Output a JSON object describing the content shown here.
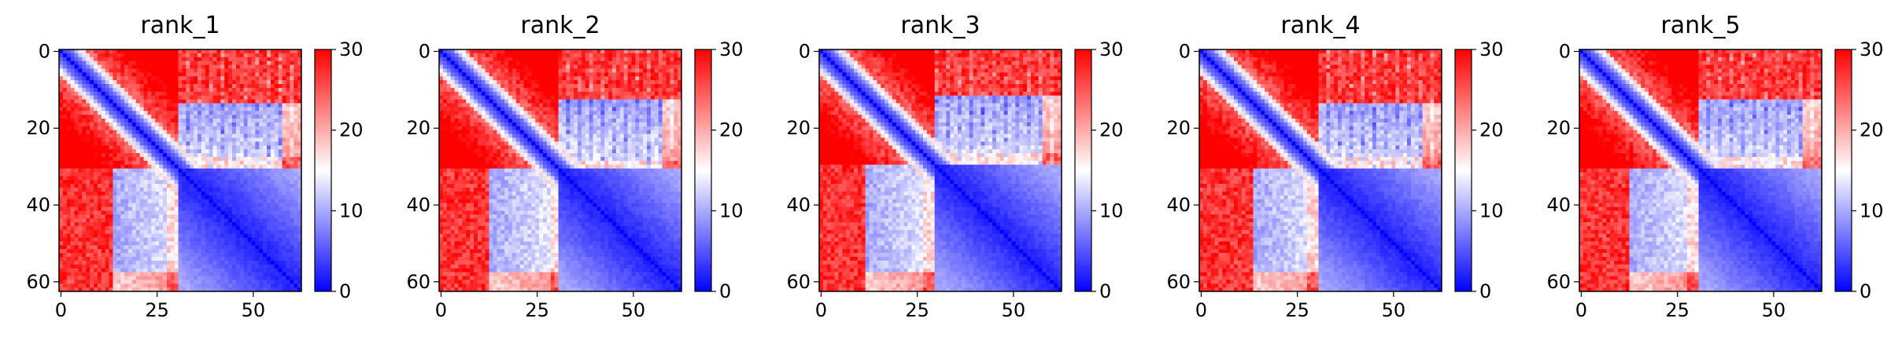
{
  "chart_data": [
    {
      "type": "heatmap",
      "title": "rank_1",
      "matrix_size": 63,
      "x_ticks": [
        0,
        25,
        50
      ],
      "y_ticks": [
        0,
        20,
        40,
        60
      ],
      "colorbar": {
        "min": 0,
        "max": 30,
        "ticks": [
          0,
          10,
          20,
          30
        ]
      },
      "colormap": {
        "low": "#0000ff",
        "mid": "#ffffff",
        "high": "#ff0000"
      },
      "pattern": {
        "domain_start": 31,
        "gap_row": 14,
        "lower_split": 28
      }
    },
    {
      "type": "heatmap",
      "title": "rank_2",
      "matrix_size": 63,
      "x_ticks": [
        0,
        25,
        50
      ],
      "y_ticks": [
        0,
        20,
        40,
        60
      ],
      "colorbar": {
        "min": 0,
        "max": 30,
        "ticks": [
          0,
          10,
          20,
          30
        ]
      },
      "colormap": {
        "low": "#0000ff",
        "mid": "#ffffff",
        "high": "#ff0000"
      },
      "pattern": {
        "domain_start": 31,
        "gap_row": 13,
        "lower_split": 29
      }
    },
    {
      "type": "heatmap",
      "title": "rank_3",
      "matrix_size": 63,
      "x_ticks": [
        0,
        25,
        50
      ],
      "y_ticks": [
        0,
        20,
        40,
        60
      ],
      "colorbar": {
        "min": 0,
        "max": 30,
        "ticks": [
          0,
          10,
          20,
          30
        ]
      },
      "colormap": {
        "low": "#0000ff",
        "mid": "#ffffff",
        "high": "#ff0000"
      },
      "pattern": {
        "domain_start": 30,
        "gap_row": 12,
        "lower_split": 27
      }
    },
    {
      "type": "heatmap",
      "title": "rank_4",
      "matrix_size": 63,
      "x_ticks": [
        0,
        25,
        50
      ],
      "y_ticks": [
        0,
        20,
        40,
        60
      ],
      "colorbar": {
        "min": 0,
        "max": 30,
        "ticks": [
          0,
          10,
          20,
          30
        ]
      },
      "colormap": {
        "low": "#0000ff",
        "mid": "#ffffff",
        "high": "#ff0000"
      },
      "pattern": {
        "domain_start": 31,
        "gap_row": 14,
        "lower_split": 28
      }
    },
    {
      "type": "heatmap",
      "title": "rank_5",
      "matrix_size": 63,
      "x_ticks": [
        0,
        25,
        50
      ],
      "y_ticks": [
        0,
        20,
        40,
        60
      ],
      "colorbar": {
        "min": 0,
        "max": 30,
        "ticks": [
          0,
          10,
          20,
          30
        ]
      },
      "colormap": {
        "low": "#0000ff",
        "mid": "#ffffff",
        "high": "#ff0000"
      },
      "pattern": {
        "domain_start": 31,
        "gap_row": 13,
        "lower_split": 28
      }
    }
  ]
}
